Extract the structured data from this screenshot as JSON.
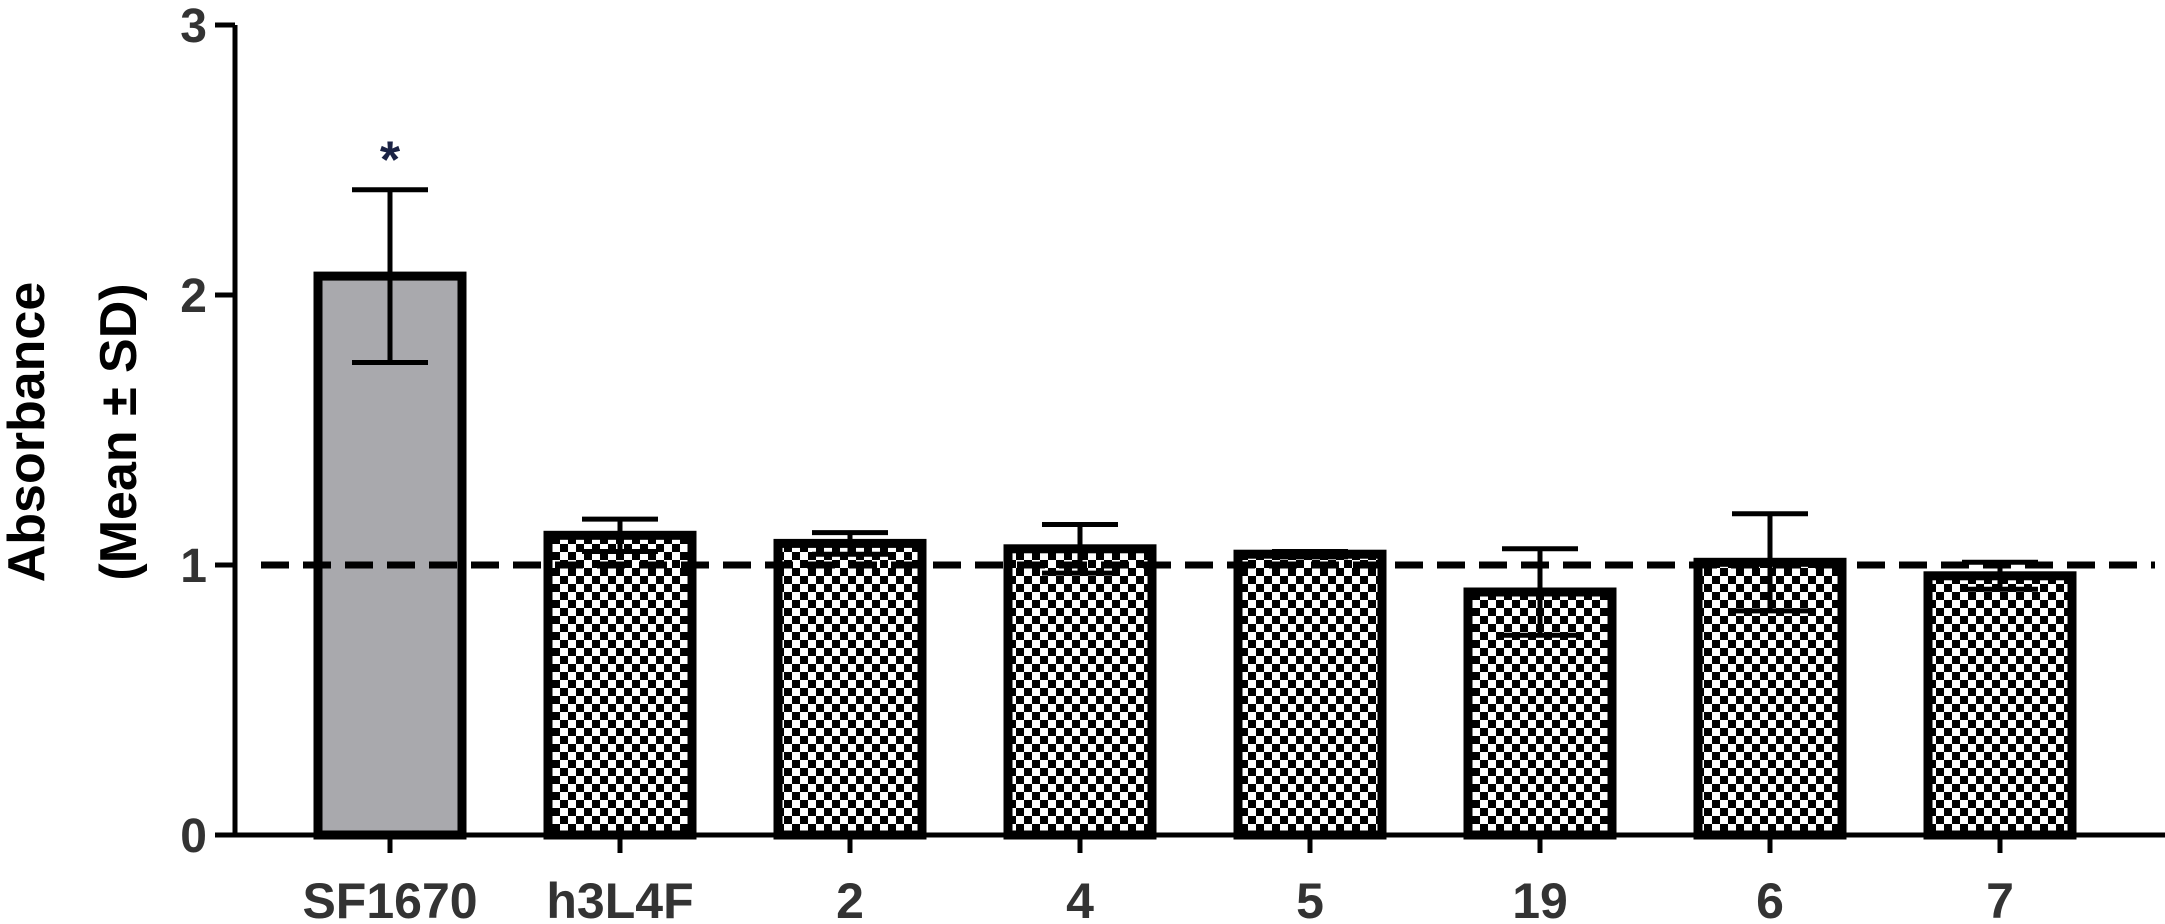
{
  "chart_data": {
    "type": "bar",
    "ylabel_line1": "Absorbance",
    "ylabel_line2": "(Mean ± SD)",
    "ylim": [
      0,
      3
    ],
    "yticks": [
      "0",
      "1",
      "2",
      "3"
    ],
    "categories": [
      "SF1670",
      "h3L4F",
      "2",
      "4",
      "5",
      "19",
      "6",
      "7"
    ],
    "values": [
      2.07,
      1.11,
      1.08,
      1.06,
      1.04,
      0.9,
      1.01,
      0.96
    ],
    "errors": [
      0.32,
      0.06,
      0.04,
      0.09,
      0.01,
      0.16,
      0.18,
      0.05
    ],
    "fills": [
      "solid-gray",
      "checker",
      "checker",
      "checker",
      "checker",
      "checker",
      "checker",
      "checker"
    ],
    "annotations": [
      {
        "category": "SF1670",
        "text": "*"
      }
    ],
    "reference_line": {
      "y": 1,
      "style": "dashed"
    },
    "colors": {
      "solid_bar": "#a9a9ad",
      "outline": "#000000",
      "significance": "#1a2244"
    },
    "grid": false,
    "legend": "none"
  }
}
